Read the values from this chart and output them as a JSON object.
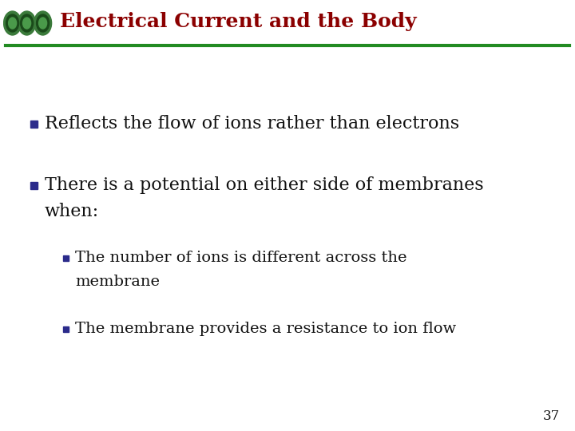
{
  "title": "Electrical Current and the Body",
  "title_color": "#8B0000",
  "title_fontsize": 18,
  "header_line_color": "#228B22",
  "background_color": "#FFFFFF",
  "bullet_color": "#2B2B8B",
  "text_color": "#111111",
  "bullet1": "Reflects the flow of ions rather than electrons",
  "bullet2_line1": "There is a potential on either side of membranes",
  "bullet2_line2": "when:",
  "sub_bullet1_line1": "The number of ions is different across the",
  "sub_bullet1_line2": "membrane",
  "sub_bullet2": "The membrane provides a resistance to ion flow",
  "page_number": "37",
  "main_bullet_fontsize": 16,
  "sub_bullet_fontsize": 14
}
